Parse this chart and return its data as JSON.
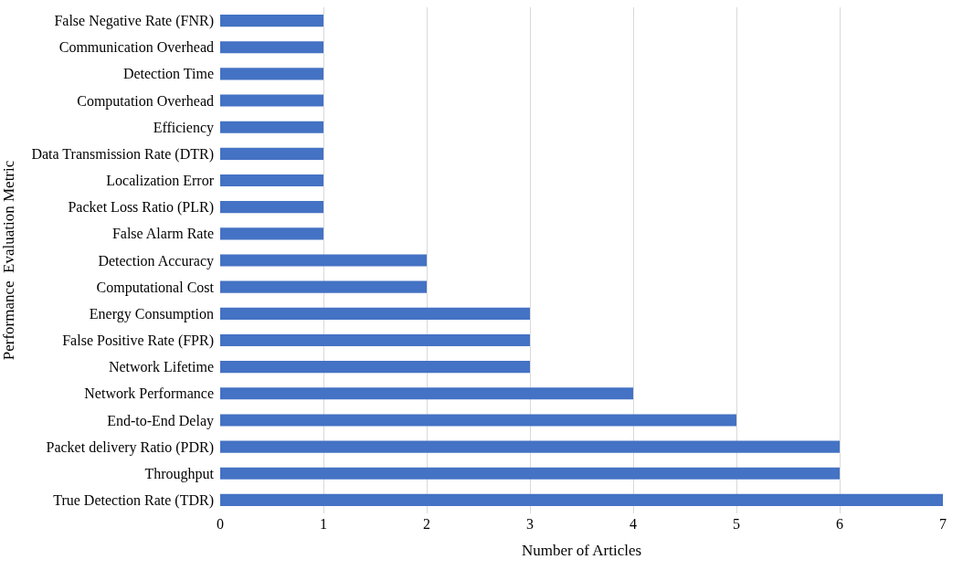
{
  "chart_data": {
    "type": "bar",
    "orientation": "horizontal",
    "xlabel": "Number of Articles",
    "ylabel": "Performance  Evaluation Metric",
    "categories": [
      "False Negative Rate (FNR)",
      "Communication Overhead",
      "Detection Time",
      "Computation Overhead",
      "Efficiency",
      "Data Transmission Rate (DTR)",
      "Localization Error",
      "Packet Loss Ratio (PLR)",
      "False Alarm Rate",
      "Detection Accuracy",
      "Computational Cost",
      "Energy Consumption",
      "False Positive Rate (FPR)",
      "Network Lifetime",
      "Network Performance",
      "End-to-End Delay",
      "Packet delivery Ratio (PDR)",
      "Throughput",
      "True Detection Rate (TDR)"
    ],
    "values": [
      1,
      1,
      1,
      1,
      1,
      1,
      1,
      1,
      1,
      2,
      2,
      3,
      3,
      3,
      4,
      5,
      6,
      6,
      7
    ],
    "color": "#4472c4",
    "xlim": [
      0,
      7
    ],
    "xticks": [
      0,
      1,
      2,
      3,
      4,
      5,
      6,
      7
    ],
    "grid": "x"
  }
}
